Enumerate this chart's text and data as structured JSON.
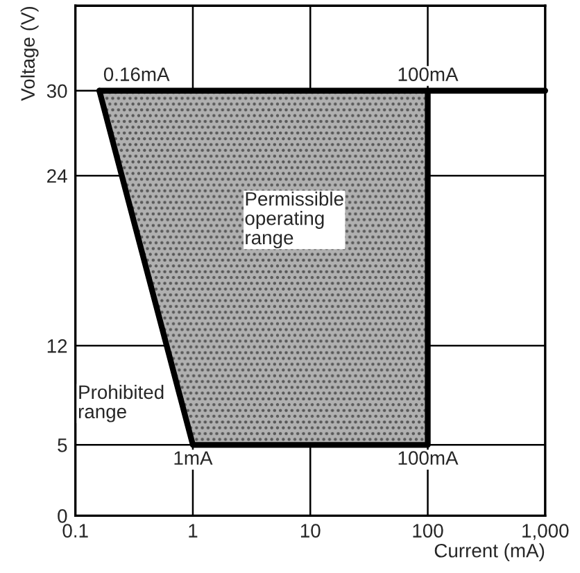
{
  "chart_data": {
    "type": "line",
    "xlabel": "Current (mA)",
    "ylabel": "Voltage (V)",
    "log": "x",
    "xlim": [
      0.1,
      1000
    ],
    "xticks": [
      0.1,
      1,
      10,
      100,
      {
        "value": 1000,
        "label": "1,000"
      }
    ],
    "ylim": [
      0,
      36
    ],
    "yticks": [
      0,
      5,
      12,
      24,
      30
    ],
    "grid": true,
    "marker": "none",
    "line_style": "solid",
    "series": [
      {
        "type": "line",
        "color": "#000000",
        "x": [
          0.16,
          1,
          100,
          100
        ],
        "values": [
          30,
          5,
          5,
          30
        ]
      },
      {
        "color": "#000000",
        "x": [
          0.16,
          1000
        ],
        "values": [
          30,
          30
        ]
      }
    ],
    "annotations": [
      {
        "text": "0.16mA",
        "x": 0.16,
        "y": 30
      },
      {
        "text": "100mA",
        "x": 100,
        "y": 30
      },
      {
        "text": "1mA",
        "x": 1,
        "y": 5
      },
      {
        "text": "100mA",
        "x": 100,
        "y": 5
      },
      "Permissible\noperating\nrange",
      "Prohibited\nrange"
    ]
  }
}
